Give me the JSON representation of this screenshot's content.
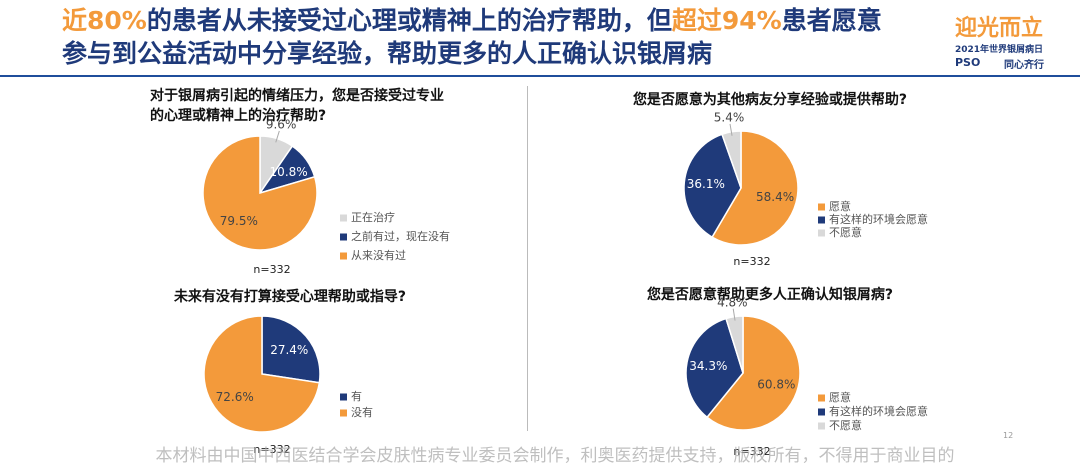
{
  "header": {
    "title": [
      "近80%",
      "的患者从未接受过心理或精神上的治疗帮助，但",
      "超过94%",
      "患者愿意"
    ],
    "title_line2": "参与到公益活动中分享经验，帮助更多的人正确认识银屑病"
  },
  "logo": {
    "name": "迎光而立",
    "event": "2021年世界银屑病日",
    "brand": "PSO",
    "slogan": "同心齐行"
  },
  "footer": {
    "text": "本材料由中国中西医结合学会皮肤性病专业委员会制作，利奥医药提供支持，版权所有，不得用于商业目的",
    "page": "12"
  },
  "chart_data": [
    {
      "type": "pie",
      "title": "对于银屑病引起的情绪压力，您是否接受过专业的心理或精神上的治疗帮助?",
      "categories": [
        "正在治疗",
        "之前有过，现在没有",
        "从来没有过"
      ],
      "values": [
        9.6,
        10.8,
        79.5
      ],
      "value_labels": [
        "9.6%",
        "10.8%",
        "79.5%"
      ],
      "colors": [
        "#d9d9d9",
        "#1f3a7a",
        "#f39a3b"
      ],
      "note": "n=332"
    },
    {
      "type": "pie",
      "title": "您是否愿意为其他病友分享经验或提供帮助?",
      "categories": [
        "愿意",
        "有这样的环境会愿意",
        "不愿意"
      ],
      "values": [
        58.4,
        36.1,
        5.4
      ],
      "value_labels": [
        "58.4%",
        "36.1%",
        "5.4%"
      ],
      "colors": [
        "#f39a3b",
        "#1f3a7a",
        "#d9d9d9"
      ],
      "note": "n=332"
    },
    {
      "type": "pie",
      "title": "未来有没有打算接受心理帮助或指导?",
      "categories": [
        "有",
        "没有"
      ],
      "values": [
        27.4,
        72.6
      ],
      "value_labels": [
        "27.4%",
        "72.6%"
      ],
      "colors": [
        "#1f3a7a",
        "#f39a3b"
      ],
      "note": "n=332"
    },
    {
      "type": "pie",
      "title": "您是否愿意帮助更多人正确认知银屑病?",
      "categories": [
        "愿意",
        "有这样的环境会愿意",
        "不愿意"
      ],
      "values": [
        60.8,
        34.3,
        4.8
      ],
      "value_labels": [
        "60.8%",
        "34.3%",
        "4.8%"
      ],
      "colors": [
        "#f39a3b",
        "#1f3a7a",
        "#d9d9d9"
      ],
      "note": "n=332"
    }
  ]
}
